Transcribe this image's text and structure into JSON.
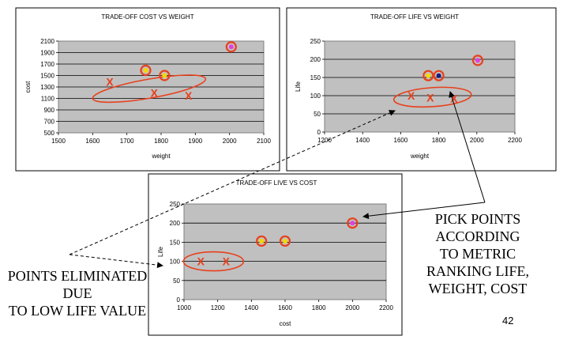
{
  "chart_data": [
    {
      "type": "scatter",
      "title": "TRADE-OFF COST VS WEIGHT",
      "xlabel": "weight",
      "ylabel": "cost",
      "xlim": [
        1500,
        2100
      ],
      "ylim": [
        500,
        2100
      ],
      "xticks": [
        1500,
        1600,
        1700,
        1800,
        1900,
        2000,
        2100
      ],
      "yticks": [
        500,
        700,
        900,
        1100,
        1300,
        1500,
        1700,
        1900,
        2100
      ],
      "grid": "horizontal",
      "background": "#c0c0c0",
      "selected": [
        [
          1755,
          1590
        ],
        [
          1810,
          1500
        ],
        [
          2005,
          2000
        ]
      ],
      "eliminated": [
        [
          1650,
          1390
        ],
        [
          1780,
          1200
        ],
        [
          1880,
          1150
        ]
      ],
      "eliminated_mark": "X"
    },
    {
      "type": "scatter",
      "title": "TRADE-OFF LIFE VS WEIGHT",
      "xlabel": "weight",
      "ylabel": "Life",
      "xlim": [
        1200,
        2200
      ],
      "ylim": [
        0,
        250
      ],
      "xticks": [
        1200,
        1400,
        1600,
        1800,
        2000,
        2200
      ],
      "yticks": [
        0,
        50,
        100,
        150,
        200,
        250
      ],
      "grid": "horizontal",
      "background": "#c0c0c0",
      "selected": [
        [
          1745,
          155
        ],
        [
          1800,
          155
        ],
        [
          2005,
          197
        ]
      ],
      "eliminated": [
        [
          1655,
          100
        ],
        [
          1755,
          95
        ],
        [
          1880,
          92
        ]
      ],
      "eliminated_mark": "X"
    },
    {
      "type": "scatter",
      "title": "TRADE-OFF LIVE VS COST",
      "xlabel": "cost",
      "ylabel": "Life",
      "xlim": [
        1000,
        2200
      ],
      "ylim": [
        0,
        250
      ],
      "xticks": [
        1000,
        1200,
        1400,
        1600,
        1800,
        2000,
        2200
      ],
      "yticks": [
        0,
        50,
        100,
        150,
        200,
        250
      ],
      "grid": "horizontal",
      "background": "#c0c0c0",
      "selected": [
        [
          1460,
          153
        ],
        [
          1600,
          153
        ],
        [
          2000,
          200
        ]
      ],
      "eliminated": [
        [
          1100,
          100
        ],
        [
          1250,
          100
        ]
      ],
      "eliminated_mark": "X"
    }
  ],
  "annotations": {
    "pick_points": [
      "PICK POINTS",
      "ACCORDING",
      "TO METRIC",
      "RANKING LIFE,",
      "WEIGHT, COST"
    ],
    "eliminated": [
      "POINTS ELIMINATED",
      "DUE",
      "TO LOW LIFE VALUE"
    ],
    "page_number": "42"
  },
  "colors": {
    "plot_bg": "#c0c0c0",
    "highlight": "#e8401c",
    "dot_yellow": "#f5d800",
    "dot_magenta": "#e040e0",
    "dot_navy": "#1a1a80"
  }
}
